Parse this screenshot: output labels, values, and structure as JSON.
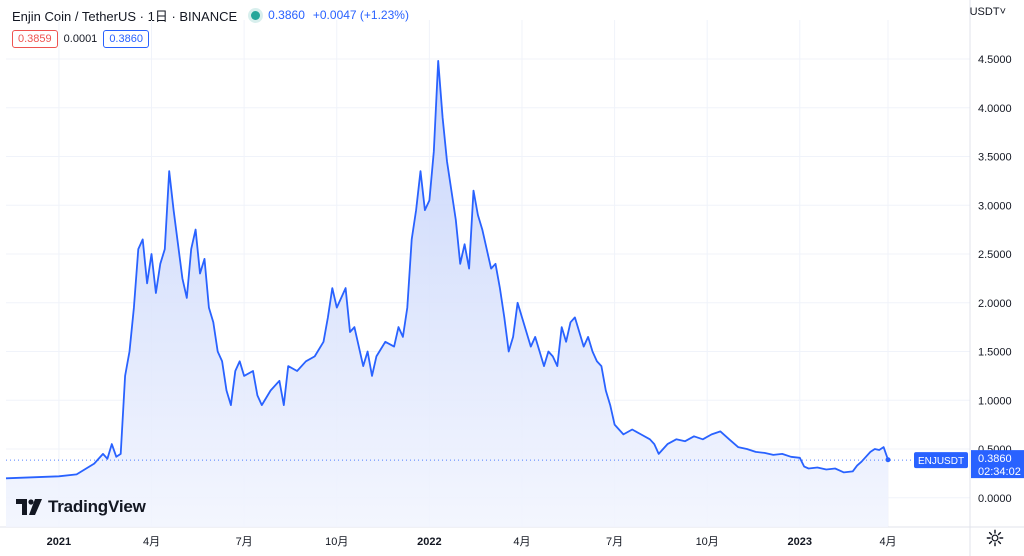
{
  "header": {
    "symbol": "Enjin Coin / TetherUS · 1日 · BINANCE",
    "last": "0.3860",
    "change": "+0.0047 (+1.23%)"
  },
  "quotes": {
    "bid": "0.3859",
    "spread": "0.0001",
    "ask": "0.3860"
  },
  "axis": {
    "currency": "USDT",
    "tag_symbol": "ENJUSDT",
    "tag_price": "0.3860",
    "tag_countdown": "02:34:02"
  },
  "logo": {
    "text": "TradingView"
  },
  "colors": {
    "line": "#2962ff",
    "area_top": "#c5d3fb",
    "area_bottom": "#f2f5fe",
    "tag": "#2962ff"
  },
  "chart_data": {
    "type": "area",
    "series": [
      {
        "values": [
          [
            0.0,
            0.2
          ],
          [
            0.03,
            0.21
          ],
          [
            0.06,
            0.22
          ],
          [
            0.08,
            0.24
          ],
          [
            0.1,
            0.35
          ],
          [
            0.11,
            0.45
          ],
          [
            0.115,
            0.4
          ],
          [
            0.12,
            0.55
          ],
          [
            0.125,
            0.42
          ],
          [
            0.13,
            0.45
          ],
          [
            0.135,
            1.25
          ],
          [
            0.14,
            1.5
          ],
          [
            0.145,
            1.95
          ],
          [
            0.15,
            2.55
          ],
          [
            0.155,
            2.65
          ],
          [
            0.16,
            2.2
          ],
          [
            0.165,
            2.5
          ],
          [
            0.17,
            2.1
          ],
          [
            0.175,
            2.4
          ],
          [
            0.18,
            2.55
          ],
          [
            0.185,
            3.35
          ],
          [
            0.19,
            2.95
          ],
          [
            0.195,
            2.6
          ],
          [
            0.2,
            2.25
          ],
          [
            0.205,
            2.05
          ],
          [
            0.21,
            2.55
          ],
          [
            0.215,
            2.75
          ],
          [
            0.22,
            2.3
          ],
          [
            0.225,
            2.45
          ],
          [
            0.23,
            1.95
          ],
          [
            0.235,
            1.8
          ],
          [
            0.24,
            1.5
          ],
          [
            0.245,
            1.4
          ],
          [
            0.25,
            1.1
          ],
          [
            0.255,
            0.95
          ],
          [
            0.26,
            1.3
          ],
          [
            0.265,
            1.4
          ],
          [
            0.27,
            1.25
          ],
          [
            0.28,
            1.3
          ],
          [
            0.285,
            1.05
          ],
          [
            0.29,
            0.95
          ],
          [
            0.3,
            1.1
          ],
          [
            0.31,
            1.2
          ],
          [
            0.315,
            0.95
          ],
          [
            0.32,
            1.35
          ],
          [
            0.33,
            1.3
          ],
          [
            0.34,
            1.4
          ],
          [
            0.35,
            1.45
          ],
          [
            0.36,
            1.6
          ],
          [
            0.365,
            1.85
          ],
          [
            0.37,
            2.15
          ],
          [
            0.375,
            1.95
          ],
          [
            0.38,
            2.05
          ],
          [
            0.385,
            2.15
          ],
          [
            0.39,
            1.7
          ],
          [
            0.395,
            1.75
          ],
          [
            0.4,
            1.55
          ],
          [
            0.405,
            1.35
          ],
          [
            0.41,
            1.5
          ],
          [
            0.415,
            1.25
          ],
          [
            0.42,
            1.45
          ],
          [
            0.43,
            1.6
          ],
          [
            0.44,
            1.55
          ],
          [
            0.445,
            1.75
          ],
          [
            0.45,
            1.65
          ],
          [
            0.455,
            1.95
          ],
          [
            0.46,
            2.65
          ],
          [
            0.465,
            2.95
          ],
          [
            0.47,
            3.35
          ],
          [
            0.475,
            2.95
          ],
          [
            0.48,
            3.05
          ],
          [
            0.485,
            3.55
          ],
          [
            0.49,
            4.48
          ],
          [
            0.495,
            3.9
          ],
          [
            0.5,
            3.45
          ],
          [
            0.505,
            3.15
          ],
          [
            0.51,
            2.85
          ],
          [
            0.515,
            2.4
          ],
          [
            0.52,
            2.6
          ],
          [
            0.525,
            2.35
          ],
          [
            0.53,
            3.15
          ],
          [
            0.535,
            2.9
          ],
          [
            0.54,
            2.75
          ],
          [
            0.545,
            2.55
          ],
          [
            0.55,
            2.35
          ],
          [
            0.555,
            2.4
          ],
          [
            0.56,
            2.15
          ],
          [
            0.565,
            1.85
          ],
          [
            0.57,
            1.5
          ],
          [
            0.575,
            1.65
          ],
          [
            0.58,
            2.0
          ],
          [
            0.585,
            1.85
          ],
          [
            0.59,
            1.7
          ],
          [
            0.595,
            1.55
          ],
          [
            0.6,
            1.65
          ],
          [
            0.605,
            1.5
          ],
          [
            0.61,
            1.35
          ],
          [
            0.615,
            1.5
          ],
          [
            0.62,
            1.45
          ],
          [
            0.625,
            1.35
          ],
          [
            0.63,
            1.75
          ],
          [
            0.635,
            1.6
          ],
          [
            0.64,
            1.8
          ],
          [
            0.645,
            1.85
          ],
          [
            0.65,
            1.7
          ],
          [
            0.655,
            1.55
          ],
          [
            0.66,
            1.65
          ],
          [
            0.665,
            1.5
          ],
          [
            0.67,
            1.4
          ],
          [
            0.675,
            1.35
          ],
          [
            0.68,
            1.1
          ],
          [
            0.685,
            0.95
          ],
          [
            0.69,
            0.75
          ],
          [
            0.695,
            0.7
          ],
          [
            0.7,
            0.65
          ],
          [
            0.71,
            0.7
          ],
          [
            0.72,
            0.65
          ],
          [
            0.73,
            0.6
          ],
          [
            0.735,
            0.55
          ],
          [
            0.74,
            0.45
          ],
          [
            0.75,
            0.55
          ],
          [
            0.76,
            0.6
          ],
          [
            0.77,
            0.58
          ],
          [
            0.78,
            0.63
          ],
          [
            0.79,
            0.6
          ],
          [
            0.8,
            0.65
          ],
          [
            0.81,
            0.68
          ],
          [
            0.82,
            0.6
          ],
          [
            0.83,
            0.52
          ],
          [
            0.84,
            0.5
          ],
          [
            0.85,
            0.47
          ],
          [
            0.86,
            0.46
          ],
          [
            0.87,
            0.44
          ],
          [
            0.88,
            0.45
          ],
          [
            0.89,
            0.42
          ],
          [
            0.9,
            0.41
          ],
          [
            0.905,
            0.32
          ],
          [
            0.91,
            0.3
          ],
          [
            0.92,
            0.31
          ],
          [
            0.93,
            0.29
          ],
          [
            0.94,
            0.3
          ],
          [
            0.945,
            0.28
          ],
          [
            0.95,
            0.26
          ],
          [
            0.96,
            0.27
          ],
          [
            0.965,
            0.33
          ],
          [
            0.97,
            0.37
          ],
          [
            0.975,
            0.42
          ],
          [
            0.98,
            0.47
          ],
          [
            0.985,
            0.5
          ],
          [
            0.99,
            0.49
          ],
          [
            0.995,
            0.52
          ],
          [
            1.0,
            0.39
          ]
        ]
      }
    ],
    "xlim": [
      0,
      1
    ],
    "y_ticks": [
      "0.0000",
      "0.5000",
      "1.0000",
      "1.5000",
      "2.0000",
      "2.5000",
      "3.0000",
      "3.5000",
      "4.0000",
      "4.5000"
    ],
    "y_tick_values": [
      0,
      0.5,
      1.0,
      1.5,
      2.0,
      2.5,
      3.0,
      3.5,
      4.0,
      4.5
    ],
    "ylim": [
      -0.3,
      4.9
    ],
    "x_ticks": [
      {
        "label": "2021",
        "pos": 0.06,
        "bold": true
      },
      {
        "label": "4月",
        "pos": 0.165
      },
      {
        "label": "7月",
        "pos": 0.27
      },
      {
        "label": "10月",
        "pos": 0.375
      },
      {
        "label": "2022",
        "pos": 0.48,
        "bold": true
      },
      {
        "label": "4月",
        "pos": 0.585
      },
      {
        "label": "7月",
        "pos": 0.69
      },
      {
        "label": "10月",
        "pos": 0.795
      },
      {
        "label": "2023",
        "pos": 0.9,
        "bold": true
      },
      {
        "label": "4月",
        "pos": 1.0
      }
    ],
    "last_price": 0.386,
    "grid": true
  }
}
